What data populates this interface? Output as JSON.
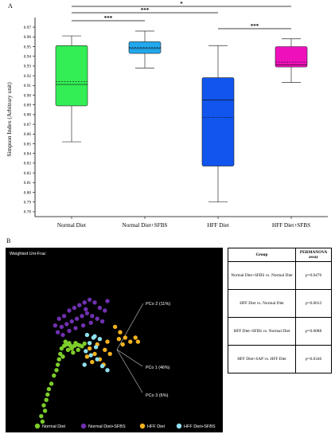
{
  "panelA": {
    "label": "A",
    "chart_data": {
      "type": "box",
      "ylabel": "Simpson Index (Arbitrary unit)",
      "ylim": [
        0.775,
        0.975
      ],
      "yticks": [
        0.78,
        0.79,
        0.8,
        0.81,
        0.82,
        0.83,
        0.84,
        0.85,
        0.86,
        0.87,
        0.88,
        0.89,
        0.9,
        0.91,
        0.92,
        0.93,
        0.94,
        0.95,
        0.96,
        0.97
      ],
      "ytick_labels": [
        "0.78",
        "0.79",
        "0.80",
        "0.81",
        "0.82",
        "0.83",
        "0.84",
        "0.85",
        "0.86",
        "0.87",
        "0.88",
        "0.89",
        "0.90",
        "0.91",
        "0.92",
        "0.93",
        "0.94",
        "0.95",
        "0.96",
        "0.97"
      ],
      "categories": [
        "Normal Diet",
        "Normal Diet+SFBS",
        "HFF Diet",
        "HFF Diet+SFBS"
      ],
      "boxes": [
        {
          "category": "Normal Diet",
          "min": 0.852,
          "q1": 0.889,
          "median": 0.911,
          "mean": 0.914,
          "q3": 0.951,
          "max": 0.961,
          "color": "#33ee55"
        },
        {
          "category": "Normal Diet+SFBS",
          "min": 0.928,
          "q1": 0.943,
          "median": 0.948,
          "mean": 0.949,
          "q3": 0.955,
          "max": 0.966,
          "color": "#22a8ee"
        },
        {
          "category": "HFF Diet",
          "min": 0.79,
          "q1": 0.827,
          "median": 0.895,
          "mean": 0.877,
          "q3": 0.918,
          "max": 0.951,
          "color": "#1155ee"
        },
        {
          "category": "HFF Diet+SFBS",
          "min": 0.913,
          "q1": 0.929,
          "median": 0.931,
          "mean": 0.934,
          "q3": 0.95,
          "max": 0.958,
          "color": "#ee11bb"
        }
      ],
      "significance": [
        {
          "from": "Normal Diet",
          "to": "HFF Diet+SFBS",
          "label": "*"
        },
        {
          "from": "Normal Diet",
          "to": "HFF Diet",
          "label": "***"
        },
        {
          "from": "Normal Diet",
          "to": "Normal Diet+SFBS",
          "label": "***"
        },
        {
          "from": "HFF Diet",
          "to": "HFF Diet+SFBS",
          "label": "***"
        }
      ]
    }
  },
  "panelB": {
    "label": "B",
    "title": "Weighted Uni-Frac",
    "axes": {
      "pc1": "PCo 1 (46%)",
      "pc2": "PCo 2 (11%)",
      "pc3": "PCo 3 (6%)"
    },
    "legend": [
      {
        "label": "Normal Diet",
        "color": "#7ccd2a"
      },
      {
        "label": "Normal Diet+SFBS",
        "color": "#7030b0"
      },
      {
        "label": "HFF Diet",
        "color": "#f2b21e"
      },
      {
        "label": "HFF Diet+SFBS",
        "color": "#8ee0ee"
      }
    ],
    "chart_data": {
      "type": "scatter",
      "series": [
        {
          "name": "Normal Diet",
          "color": "#7ccd2a",
          "points": [
            [
              -1.6,
              -2.4
            ],
            [
              -1.55,
              -2.6
            ],
            [
              -1.45,
              -2.2
            ],
            [
              -1.5,
              -2.0
            ],
            [
              -1.4,
              -1.8
            ],
            [
              -1.35,
              -1.6
            ],
            [
              -1.3,
              -1.4
            ],
            [
              -1.2,
              -1.2
            ],
            [
              -1.1,
              -0.9
            ],
            [
              -1.0,
              -0.7
            ],
            [
              -0.95,
              -0.5
            ],
            [
              -0.9,
              -0.3
            ],
            [
              -0.85,
              -0.1
            ],
            [
              -0.8,
              0.1
            ],
            [
              -0.7,
              0.2
            ],
            [
              -0.6,
              0.25
            ],
            [
              -0.5,
              0.3
            ],
            [
              -0.45,
              0.2
            ],
            [
              -0.4,
              0.1
            ],
            [
              -0.3,
              0.2
            ],
            [
              -0.2,
              0.25
            ],
            [
              -0.1,
              0.22
            ],
            [
              0.0,
              0.18
            ],
            [
              -0.55,
              0.05
            ],
            [
              -0.35,
              -0.05
            ],
            [
              -0.25,
              0.3
            ],
            [
              0.1,
              0.28
            ],
            [
              -0.65,
              0.35
            ],
            [
              -0.75,
              -0.2
            ],
            [
              -0.15,
              0.05
            ]
          ]
        },
        {
          "name": "Normal Diet+SFBS",
          "color": "#7030b0",
          "points": [
            [
              -0.9,
              1.2
            ],
            [
              -0.7,
              1.3
            ],
            [
              -0.5,
              1.5
            ],
            [
              -0.3,
              1.6
            ],
            [
              -0.1,
              1.7
            ],
            [
              0.1,
              1.8
            ],
            [
              0.3,
              1.9
            ],
            [
              0.5,
              1.8
            ],
            [
              0.7,
              1.6
            ],
            [
              0.9,
              1.5
            ],
            [
              -0.8,
              0.9
            ],
            [
              -0.6,
              1.0
            ],
            [
              -0.4,
              1.1
            ],
            [
              -0.2,
              1.2
            ],
            [
              0.0,
              1.3
            ],
            [
              0.2,
              1.4
            ],
            [
              0.4,
              1.3
            ],
            [
              0.6,
              1.2
            ],
            [
              -0.95,
              0.7
            ],
            [
              -0.75,
              0.6
            ],
            [
              -0.5,
              0.75
            ],
            [
              -0.25,
              0.85
            ],
            [
              0.05,
              0.95
            ],
            [
              0.35,
              1.05
            ],
            [
              0.8,
              1.1
            ],
            [
              1.0,
              1.85
            ],
            [
              -1.05,
              0.95
            ],
            [
              0.15,
              1.55
            ]
          ]
        },
        {
          "name": "HFF Diet",
          "color": "#f2b21e",
          "points": [
            [
              1.3,
              0.9
            ],
            [
              1.5,
              0.7
            ],
            [
              1.7,
              0.5
            ],
            [
              1.9,
              0.35
            ],
            [
              1.6,
              0.25
            ],
            [
              1.45,
              0.45
            ],
            [
              2.1,
              0.5
            ],
            [
              2.2,
              0.35
            ],
            [
              0.3,
              0.1
            ],
            [
              0.5,
              -0.1
            ],
            [
              0.7,
              -0.3
            ],
            [
              0.9,
              0.05
            ],
            [
              1.1,
              -0.1
            ],
            [
              0.4,
              -0.4
            ],
            [
              0.6,
              0.25
            ],
            [
              0.85,
              -0.5
            ],
            [
              0.2,
              -0.2
            ],
            [
              1.0,
              0.35
            ]
          ]
        },
        {
          "name": "HFF Diet+SFBS",
          "color": "#8ee0ee",
          "points": [
            [
              0.2,
              0.6
            ],
            [
              0.45,
              0.5
            ],
            [
              0.7,
              0.45
            ],
            [
              0.3,
              0.3
            ],
            [
              0.55,
              0.15
            ],
            [
              0.15,
              0.0
            ],
            [
              0.35,
              -0.15
            ],
            [
              0.6,
              -0.3
            ],
            [
              0.8,
              -0.55
            ],
            [
              1.0,
              -0.7
            ],
            [
              0.1,
              -0.5
            ],
            [
              0.5,
              0.55
            ]
          ]
        }
      ]
    }
  },
  "table": {
    "headers": [
      "Group",
      "PERMANOVA assay"
    ],
    "rows": [
      {
        "group": "Normal Diet+SFBS vs. Normal Diet",
        "p_label": "p",
        "p_value": "=0.0476"
      },
      {
        "group": "HFF Diet vs. Normal Diet",
        "p_label": "p",
        "p_value": "=0.0012"
      },
      {
        "group": "HFF Diet+SFBS vs. Normal Diet",
        "p_label": "p",
        "p_value": "=0.0088"
      },
      {
        "group": "HFF Diet+SAP vs. HFF Diet",
        "p_label": "p",
        "p_value": "=0.0346"
      }
    ]
  }
}
